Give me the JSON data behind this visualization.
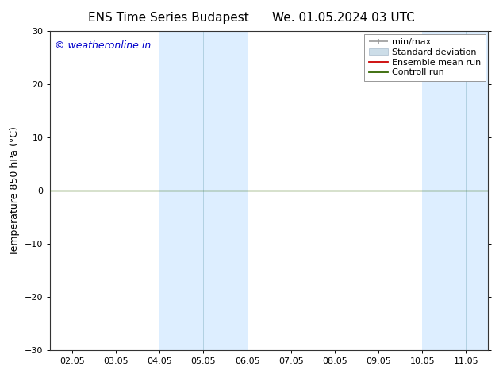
{
  "title": "ENS Time Series Budapest",
  "title2": "We. 01.05.2024 03 UTC",
  "ylabel": "Temperature 850 hPa (°C)",
  "ylim": [
    -30,
    30
  ],
  "yticks": [
    -30,
    -20,
    -10,
    0,
    10,
    20,
    30
  ],
  "xtick_labels": [
    "02.05",
    "03.05",
    "04.05",
    "05.05",
    "06.05",
    "07.05",
    "08.05",
    "09.05",
    "10.05",
    "11.05"
  ],
  "watermark": "© weatheronline.in",
  "watermark_color": "#0000cc",
  "background_color": "#ffffff",
  "plot_bg_color": "#ffffff",
  "zero_line_color": "#336600",
  "zero_line_y": 0,
  "shaded_bands": [
    {
      "xmin": 2.0,
      "xmax": 3.0,
      "color": "#ddeeff"
    },
    {
      "xmin": 3.0,
      "xmax": 4.0,
      "color": "#ddeeff"
    },
    {
      "xmin": 8.0,
      "xmax": 9.0,
      "color": "#ddeeff"
    },
    {
      "xmin": 9.0,
      "xmax": 10.0,
      "color": "#ddeeff"
    }
  ],
  "divider_lines": [
    3.0,
    9.0
  ],
  "figsize": [
    6.34,
    4.9
  ],
  "dpi": 100,
  "title_fontsize": 11,
  "label_fontsize": 9,
  "tick_fontsize": 8,
  "watermark_fontsize": 9,
  "legend_fontsize": 8
}
